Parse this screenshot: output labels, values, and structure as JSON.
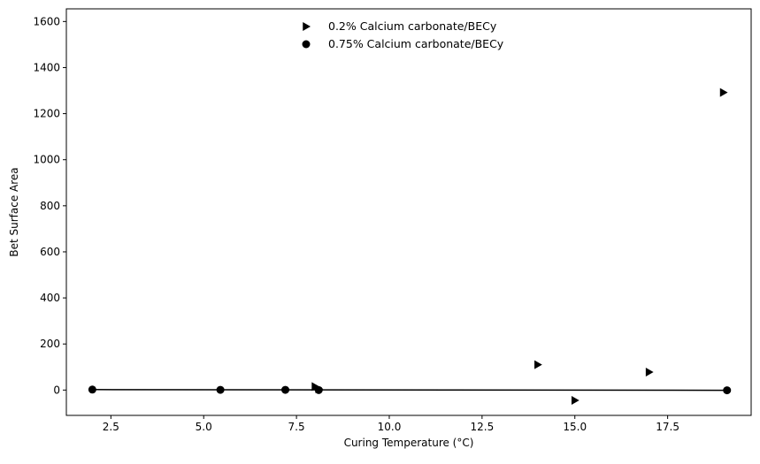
{
  "chart_data": {
    "type": "scatter",
    "title": "",
    "xlabel": "Curing Temperature (°C)",
    "ylabel": "Bet Surface Area",
    "xlim": [
      1.3,
      19.75
    ],
    "ylim": [
      -110,
      1655
    ],
    "xticks": [
      2.5,
      5.0,
      7.5,
      10.0,
      12.5,
      15.0,
      17.5
    ],
    "xtick_labels": [
      "2.5",
      "5.0",
      "7.5",
      "10.0",
      "12.5",
      "15.0",
      "17.5"
    ],
    "yticks": [
      0,
      200,
      400,
      600,
      800,
      1000,
      1200,
      1400,
      1600
    ],
    "ytick_labels": [
      "0",
      "200",
      "400",
      "600",
      "800",
      "1000",
      "1200",
      "1400",
      "1600"
    ],
    "grid": false,
    "legend_position": "top-center",
    "series": [
      {
        "name": "0.2% Calcium carbonate/BECy",
        "marker": "triangle-right",
        "color": "#000000",
        "points": [
          {
            "x": 8.0,
            "y": 15
          },
          {
            "x": 8.1,
            "y": 5
          },
          {
            "x": 14.0,
            "y": 110
          },
          {
            "x": 15.0,
            "y": -45
          },
          {
            "x": 17.0,
            "y": 78
          },
          {
            "x": 19.0,
            "y": 1292
          }
        ]
      },
      {
        "name": "0.75% Calcium carbonate/BECy",
        "marker": "circle",
        "color": "#000000",
        "points": [
          {
            "x": 2.0,
            "y": 2
          },
          {
            "x": 5.45,
            "y": 1
          },
          {
            "x": 7.2,
            "y": 1
          },
          {
            "x": 8.1,
            "y": 0
          },
          {
            "x": 19.1,
            "y": -1
          }
        ]
      }
    ],
    "fit_line": {
      "color": "#000000",
      "points": [
        {
          "x": 2.0,
          "y": 2
        },
        {
          "x": 19.1,
          "y": -1
        }
      ]
    }
  }
}
